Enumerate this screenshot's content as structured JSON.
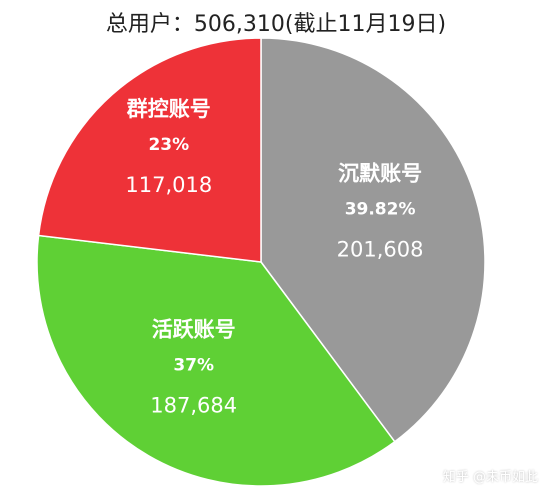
{
  "chart_data": {
    "type": "pie",
    "title": "总用户：506,310(截止11月19日)",
    "slices": [
      {
        "label": "沉默账号",
        "percent_label": "39.82%",
        "value": 201608,
        "value_label": "201,608",
        "color": "#999999"
      },
      {
        "label": "活跃账号",
        "percent_label": "37%",
        "value": 187684,
        "value_label": "187,684",
        "color": "#5fd035"
      },
      {
        "label": "群控账号",
        "percent_label": "23%",
        "value": 117018,
        "value_label": "117,018",
        "color": "#ee3238"
      }
    ],
    "start_angle_deg": 0,
    "direction": "clockwise",
    "legend": "none"
  },
  "watermark": "知乎 @未币如此"
}
